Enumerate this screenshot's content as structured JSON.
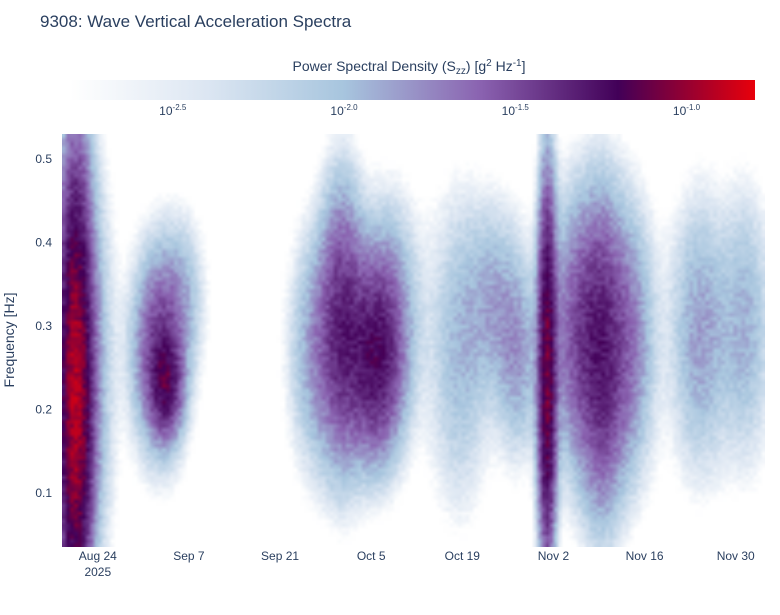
{
  "chart_data": {
    "type": "heatmap",
    "title": "9308: Wave Vertical Acceleration Spectra",
    "colorbar": {
      "title_main": "Power Spectral Density (S",
      "title_sub": "zz",
      "title_mid": ") [g",
      "title_sup1": "2",
      "title_hz": " Hz",
      "title_sup2": "-1",
      "title_end": "]",
      "log_range": [
        -2.8,
        -0.8
      ],
      "ticks": [
        {
          "base": "10",
          "exp": "-2.5",
          "value": -2.5
        },
        {
          "base": "10",
          "exp": "-2.0",
          "value": -2.0
        },
        {
          "base": "10",
          "exp": "-1.5",
          "value": -1.5
        },
        {
          "base": "10",
          "exp": "-1.0",
          "value": -1.0
        }
      ],
      "colors": [
        "#ffffff",
        "#dce6f2",
        "#a7c5de",
        "#8a62b0",
        "#420058",
        "#e8000b"
      ]
    },
    "xaxis": {
      "label": "",
      "start_day": -5.5,
      "end_day": 102.5,
      "ticks": [
        {
          "label": "Aug 24",
          "sub": "2025",
          "day": 0
        },
        {
          "label": "Sep 7",
          "sub": "",
          "day": 14
        },
        {
          "label": "Sep 21",
          "sub": "",
          "day": 28
        },
        {
          "label": "Oct 5",
          "sub": "",
          "day": 42
        },
        {
          "label": "Oct 19",
          "sub": "",
          "day": 56
        },
        {
          "label": "Nov 2",
          "sub": "",
          "day": 70
        },
        {
          "label": "Nov 16",
          "sub": "",
          "day": 84
        },
        {
          "label": "Nov 30",
          "sub": "",
          "day": 98
        }
      ]
    },
    "yaxis": {
      "label": "Frequency [Hz]",
      "range": [
        0.035,
        0.53
      ],
      "ticks": [
        "0.1",
        "0.2",
        "0.3",
        "0.4",
        "0.5"
      ],
      "tick_values": [
        0.1,
        0.2,
        0.3,
        0.4,
        0.5
      ]
    },
    "events": [
      {
        "day": -3.5,
        "f": 0.22,
        "width_days": 2.2,
        "bandwidth": 0.24,
        "log_peak": -0.95
      },
      {
        "day": -1.0,
        "f": 0.24,
        "width_days": 3.0,
        "bandwidth": 0.22,
        "log_peak": -1.9
      },
      {
        "day": 9.5,
        "f": 0.27,
        "width_days": 3.5,
        "bandwidth": 0.1,
        "log_peak": -1.45
      },
      {
        "day": 10.5,
        "f": 0.23,
        "width_days": 2.0,
        "bandwidth": 0.05,
        "log_peak": -1.35
      },
      {
        "day": 13.0,
        "f": 0.34,
        "width_days": 3.0,
        "bandwidth": 0.08,
        "log_peak": -2.1
      },
      {
        "day": 33.5,
        "f": 0.27,
        "width_days": 3.5,
        "bandwidth": 0.12,
        "log_peak": -1.85
      },
      {
        "day": 37.5,
        "f": 0.3,
        "width_days": 3.0,
        "bandwidth": 0.14,
        "log_peak": -1.4
      },
      {
        "day": 42.5,
        "f": 0.26,
        "width_days": 3.5,
        "bandwidth": 0.1,
        "log_peak": -1.3
      },
      {
        "day": 45.0,
        "f": 0.31,
        "width_days": 4.0,
        "bandwidth": 0.12,
        "log_peak": -1.85
      },
      {
        "day": 55.5,
        "f": 0.27,
        "width_days": 4.0,
        "bandwidth": 0.16,
        "log_peak": -2.0
      },
      {
        "day": 61.0,
        "f": 0.33,
        "width_days": 4.0,
        "bandwidth": 0.1,
        "log_peak": -1.95
      },
      {
        "day": 64.5,
        "f": 0.26,
        "width_days": 3.0,
        "bandwidth": 0.1,
        "log_peak": -1.9
      },
      {
        "day": 69.0,
        "f": 0.24,
        "width_days": 1.2,
        "bandwidth": 0.2,
        "log_peak": -1.1
      },
      {
        "day": 74.0,
        "f": 0.29,
        "width_days": 4.0,
        "bandwidth": 0.14,
        "log_peak": -1.55
      },
      {
        "day": 77.5,
        "f": 0.26,
        "width_days": 3.0,
        "bandwidth": 0.16,
        "log_peak": -1.45
      },
      {
        "day": 81.5,
        "f": 0.28,
        "width_days": 3.5,
        "bandwidth": 0.14,
        "log_peak": -1.7
      },
      {
        "day": 92.5,
        "f": 0.29,
        "width_days": 4.0,
        "bandwidth": 0.14,
        "log_peak": -1.85
      },
      {
        "day": 99.5,
        "f": 0.3,
        "width_days": 3.5,
        "bandwidth": 0.14,
        "log_peak": -1.95
      }
    ]
  }
}
